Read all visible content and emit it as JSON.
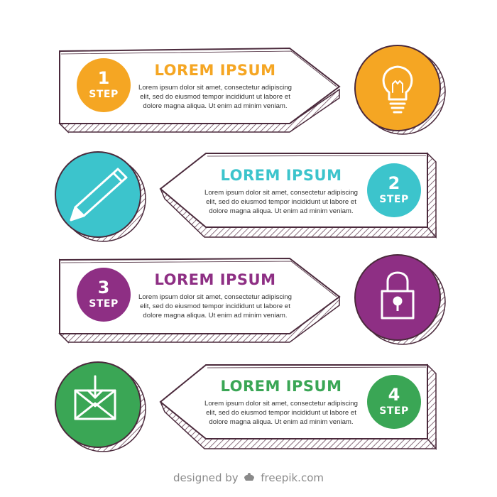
{
  "colors": {
    "outline": "#4b2a3c",
    "hatch": "#6b4a5c",
    "shadow": "#dddddd"
  },
  "steps": [
    {
      "number": "1",
      "word": "STEP",
      "title": "LOREM IPSUM",
      "body": [
        "Lorem ipsum dolor sit amet, consectetur adipiscing",
        "elit, sed do eiusmod tempor incididunt ut labore et",
        "dolore magna aliqua. Ut enim ad minim veniam."
      ],
      "color": "#f5a623",
      "icon": "lightbulb-icon"
    },
    {
      "number": "2",
      "word": "STEP",
      "title": "LOREM IPSUM",
      "body": [
        "Lorem ipsum dolor sit amet, consectetur adipiscing",
        "elit, sed do eiusmod tempor incididunt ut labore et",
        "dolore magna aliqua. Ut enim ad minim veniam."
      ],
      "color": "#3cc4cc",
      "icon": "pencil-icon"
    },
    {
      "number": "3",
      "word": "STEP",
      "title": "LOREM IPSUM",
      "body": [
        "Lorem ipsum dolor sit amet, consectetur adipiscing",
        "elit, sed do eiusmod tempor incididunt ut labore et",
        "dolore magna aliqua. Ut enim ad minim veniam."
      ],
      "color": "#8e2f84",
      "icon": "padlock-icon"
    },
    {
      "number": "4",
      "word": "STEP",
      "title": "LOREM IPSUM",
      "body": [
        "Lorem ipsum dolor sit amet, consectetur adipiscing",
        "elit, sed do eiusmod tempor incididunt ut labore et",
        "dolore magna aliqua. Ut enim ad minim veniam."
      ],
      "color": "#3aa655",
      "icon": "download-envelope-icon"
    }
  ],
  "footer": {
    "designed_by": "designed by",
    "brand": "freepik.com"
  }
}
